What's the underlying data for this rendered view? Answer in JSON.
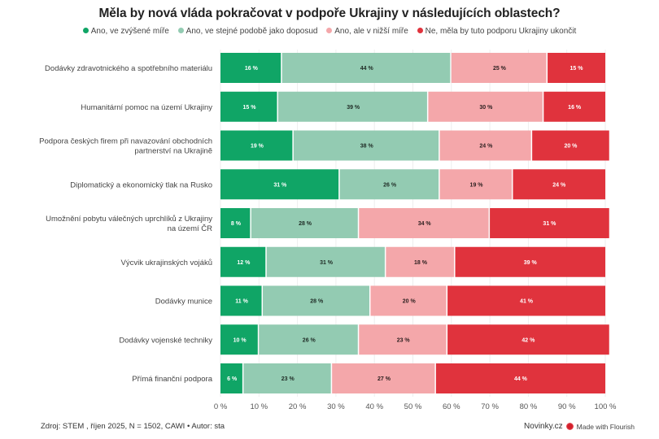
{
  "chart_data": {
    "type": "bar",
    "orientation": "horizontal",
    "stacked": true,
    "title": "Měla by nová vláda pokračovat v podpoře Ukrajiny v následujících oblastech?",
    "xlabel": "",
    "ylabel": "",
    "xlim": [
      0,
      100
    ],
    "x_ticks": [
      "0 %",
      "10 %",
      "20 %",
      "30 %",
      "40 %",
      "50 %",
      "60 %",
      "70 %",
      "80 %",
      "90 %",
      "100 %"
    ],
    "legend_position": "top",
    "categories": [
      [
        "Dodávky zdravotnického a spotřebního materiálu"
      ],
      [
        "Humanitární pomoc na území Ukrajiny"
      ],
      [
        "Podpora českých firem při navazování obchodních",
        "partnerství na Ukrajině"
      ],
      [
        "Diplomatický a ekonomický tlak na Rusko"
      ],
      [
        "Umožnění pobytu válečných uprchlíků z Ukrajiny",
        "na území ČR"
      ],
      [
        "Výcvik ukrajinských vojáků"
      ],
      [
        "Dodávky munice"
      ],
      [
        "Dodávky vojenské techniky"
      ],
      [
        "Přímá finanční podpora"
      ]
    ],
    "series": [
      {
        "name": "Ano, ve zvýšené míře",
        "color": "#10a566",
        "label_color": "#ffffff",
        "values": [
          16,
          15,
          19,
          31,
          8,
          12,
          11,
          10,
          6
        ]
      },
      {
        "name": "Ano, ve stejné podobě jako doposud",
        "color": "#93cbb2",
        "label_color": "#1e2a24",
        "values": [
          44,
          39,
          38,
          26,
          28,
          31,
          28,
          26,
          23
        ]
      },
      {
        "name": "Ano, ale v nižší míře",
        "color": "#f4a7aa",
        "label_color": "#2a1e1e",
        "values": [
          25,
          30,
          24,
          19,
          34,
          18,
          20,
          23,
          27
        ]
      },
      {
        "name": "Ne, měla by tuto podporu Ukrajiny ukončit",
        "color": "#e0333d",
        "label_color": "#ffffff",
        "values": [
          15,
          16,
          20,
          24,
          31,
          39,
          41,
          42,
          44
        ]
      }
    ],
    "value_suffix": " %"
  },
  "footer": {
    "source": "Zdroj: STEM , říjen 2025, N = 1502, CAWI • Autor: sta",
    "brand": "Novinky.cz",
    "made_with": "Made with Flourish"
  }
}
